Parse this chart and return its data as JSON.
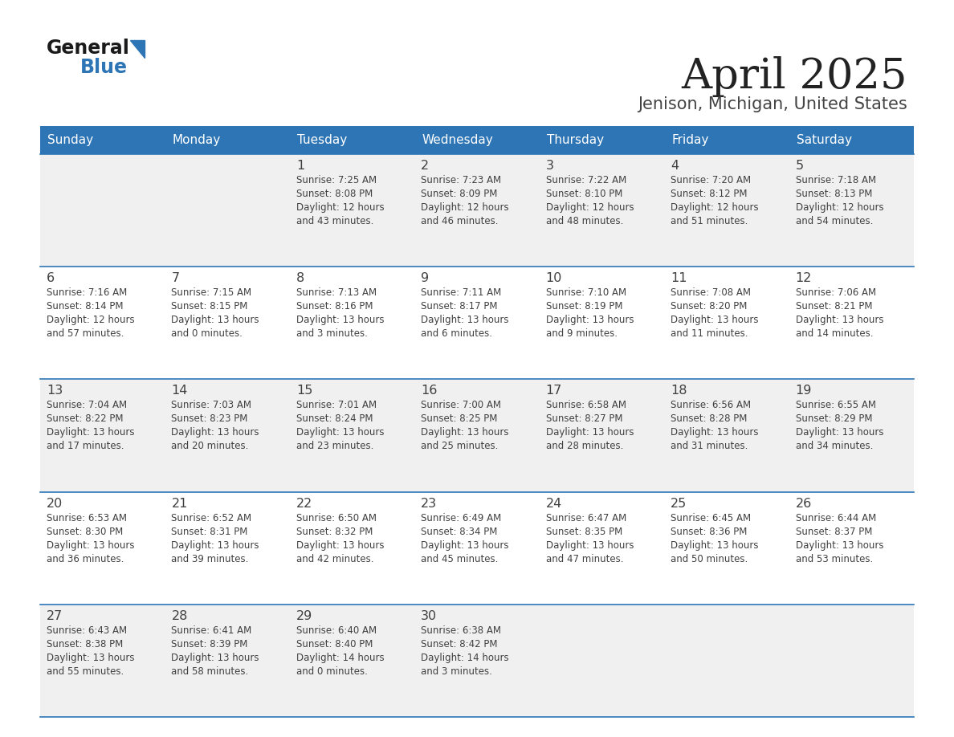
{
  "title": "April 2025",
  "subtitle": "Jenison, Michigan, United States",
  "days_of_week": [
    "Sunday",
    "Monday",
    "Tuesday",
    "Wednesday",
    "Thursday",
    "Friday",
    "Saturday"
  ],
  "header_bg": "#2E75B6",
  "header_text_color": "#FFFFFF",
  "row_bg_even": "#F0F0F0",
  "row_bg_odd": "#FFFFFF",
  "separator_color": "#2E75B6",
  "text_color": "#404040",
  "title_color": "#222222",
  "subtitle_color": "#444444",
  "calendar_data": [
    [
      {
        "day": "",
        "sunrise": "",
        "sunset": "",
        "daylight": ""
      },
      {
        "day": "",
        "sunrise": "",
        "sunset": "",
        "daylight": ""
      },
      {
        "day": "1",
        "sunrise": "Sunrise: 7:25 AM",
        "sunset": "Sunset: 8:08 PM",
        "daylight": "Daylight: 12 hours\nand 43 minutes."
      },
      {
        "day": "2",
        "sunrise": "Sunrise: 7:23 AM",
        "sunset": "Sunset: 8:09 PM",
        "daylight": "Daylight: 12 hours\nand 46 minutes."
      },
      {
        "day": "3",
        "sunrise": "Sunrise: 7:22 AM",
        "sunset": "Sunset: 8:10 PM",
        "daylight": "Daylight: 12 hours\nand 48 minutes."
      },
      {
        "day": "4",
        "sunrise": "Sunrise: 7:20 AM",
        "sunset": "Sunset: 8:12 PM",
        "daylight": "Daylight: 12 hours\nand 51 minutes."
      },
      {
        "day": "5",
        "sunrise": "Sunrise: 7:18 AM",
        "sunset": "Sunset: 8:13 PM",
        "daylight": "Daylight: 12 hours\nand 54 minutes."
      }
    ],
    [
      {
        "day": "6",
        "sunrise": "Sunrise: 7:16 AM",
        "sunset": "Sunset: 8:14 PM",
        "daylight": "Daylight: 12 hours\nand 57 minutes."
      },
      {
        "day": "7",
        "sunrise": "Sunrise: 7:15 AM",
        "sunset": "Sunset: 8:15 PM",
        "daylight": "Daylight: 13 hours\nand 0 minutes."
      },
      {
        "day": "8",
        "sunrise": "Sunrise: 7:13 AM",
        "sunset": "Sunset: 8:16 PM",
        "daylight": "Daylight: 13 hours\nand 3 minutes."
      },
      {
        "day": "9",
        "sunrise": "Sunrise: 7:11 AM",
        "sunset": "Sunset: 8:17 PM",
        "daylight": "Daylight: 13 hours\nand 6 minutes."
      },
      {
        "day": "10",
        "sunrise": "Sunrise: 7:10 AM",
        "sunset": "Sunset: 8:19 PM",
        "daylight": "Daylight: 13 hours\nand 9 minutes."
      },
      {
        "day": "11",
        "sunrise": "Sunrise: 7:08 AM",
        "sunset": "Sunset: 8:20 PM",
        "daylight": "Daylight: 13 hours\nand 11 minutes."
      },
      {
        "day": "12",
        "sunrise": "Sunrise: 7:06 AM",
        "sunset": "Sunset: 8:21 PM",
        "daylight": "Daylight: 13 hours\nand 14 minutes."
      }
    ],
    [
      {
        "day": "13",
        "sunrise": "Sunrise: 7:04 AM",
        "sunset": "Sunset: 8:22 PM",
        "daylight": "Daylight: 13 hours\nand 17 minutes."
      },
      {
        "day": "14",
        "sunrise": "Sunrise: 7:03 AM",
        "sunset": "Sunset: 8:23 PM",
        "daylight": "Daylight: 13 hours\nand 20 minutes."
      },
      {
        "day": "15",
        "sunrise": "Sunrise: 7:01 AM",
        "sunset": "Sunset: 8:24 PM",
        "daylight": "Daylight: 13 hours\nand 23 minutes."
      },
      {
        "day": "16",
        "sunrise": "Sunrise: 7:00 AM",
        "sunset": "Sunset: 8:25 PM",
        "daylight": "Daylight: 13 hours\nand 25 minutes."
      },
      {
        "day": "17",
        "sunrise": "Sunrise: 6:58 AM",
        "sunset": "Sunset: 8:27 PM",
        "daylight": "Daylight: 13 hours\nand 28 minutes."
      },
      {
        "day": "18",
        "sunrise": "Sunrise: 6:56 AM",
        "sunset": "Sunset: 8:28 PM",
        "daylight": "Daylight: 13 hours\nand 31 minutes."
      },
      {
        "day": "19",
        "sunrise": "Sunrise: 6:55 AM",
        "sunset": "Sunset: 8:29 PM",
        "daylight": "Daylight: 13 hours\nand 34 minutes."
      }
    ],
    [
      {
        "day": "20",
        "sunrise": "Sunrise: 6:53 AM",
        "sunset": "Sunset: 8:30 PM",
        "daylight": "Daylight: 13 hours\nand 36 minutes."
      },
      {
        "day": "21",
        "sunrise": "Sunrise: 6:52 AM",
        "sunset": "Sunset: 8:31 PM",
        "daylight": "Daylight: 13 hours\nand 39 minutes."
      },
      {
        "day": "22",
        "sunrise": "Sunrise: 6:50 AM",
        "sunset": "Sunset: 8:32 PM",
        "daylight": "Daylight: 13 hours\nand 42 minutes."
      },
      {
        "day": "23",
        "sunrise": "Sunrise: 6:49 AM",
        "sunset": "Sunset: 8:34 PM",
        "daylight": "Daylight: 13 hours\nand 45 minutes."
      },
      {
        "day": "24",
        "sunrise": "Sunrise: 6:47 AM",
        "sunset": "Sunset: 8:35 PM",
        "daylight": "Daylight: 13 hours\nand 47 minutes."
      },
      {
        "day": "25",
        "sunrise": "Sunrise: 6:45 AM",
        "sunset": "Sunset: 8:36 PM",
        "daylight": "Daylight: 13 hours\nand 50 minutes."
      },
      {
        "day": "26",
        "sunrise": "Sunrise: 6:44 AM",
        "sunset": "Sunset: 8:37 PM",
        "daylight": "Daylight: 13 hours\nand 53 minutes."
      }
    ],
    [
      {
        "day": "27",
        "sunrise": "Sunrise: 6:43 AM",
        "sunset": "Sunset: 8:38 PM",
        "daylight": "Daylight: 13 hours\nand 55 minutes."
      },
      {
        "day": "28",
        "sunrise": "Sunrise: 6:41 AM",
        "sunset": "Sunset: 8:39 PM",
        "daylight": "Daylight: 13 hours\nand 58 minutes."
      },
      {
        "day": "29",
        "sunrise": "Sunrise: 6:40 AM",
        "sunset": "Sunset: 8:40 PM",
        "daylight": "Daylight: 14 hours\nand 0 minutes."
      },
      {
        "day": "30",
        "sunrise": "Sunrise: 6:38 AM",
        "sunset": "Sunset: 8:42 PM",
        "daylight": "Daylight: 14 hours\nand 3 minutes."
      },
      {
        "day": "",
        "sunrise": "",
        "sunset": "",
        "daylight": ""
      },
      {
        "day": "",
        "sunrise": "",
        "sunset": "",
        "daylight": ""
      },
      {
        "day": "",
        "sunrise": "",
        "sunset": "",
        "daylight": ""
      }
    ]
  ]
}
